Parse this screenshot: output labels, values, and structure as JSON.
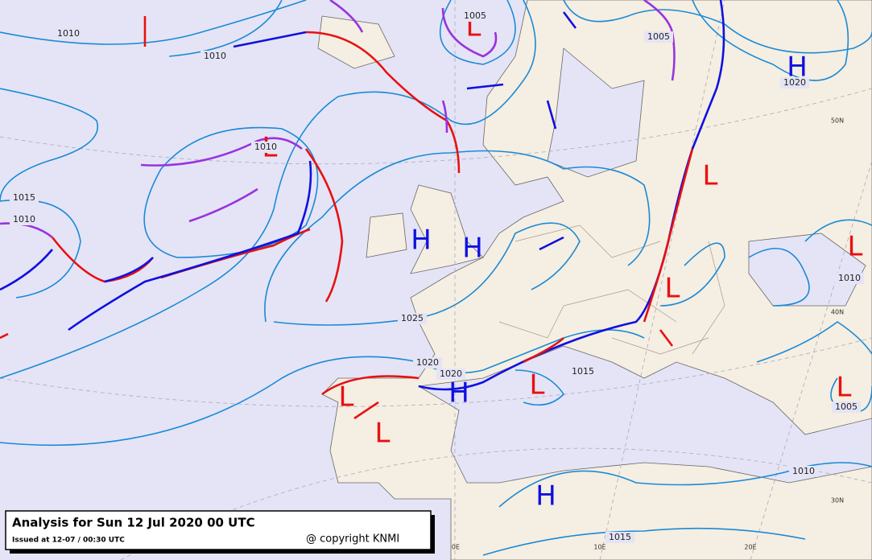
{
  "title_box": {
    "title": "Analysis for Sun 12 Jul 2020 00 UTC",
    "issued": "Issued at 12-07 / 00:30 UTC",
    "copyright": "@ copyright KNMI"
  },
  "pressure_centers": [
    "H",
    "L",
    "L",
    "L",
    "H",
    "H",
    "L",
    "L",
    "L",
    "H",
    "L",
    "L",
    "L",
    "H"
  ],
  "isobar_labels": [
    "1010",
    "1010",
    "1005",
    "1005",
    "1020",
    "1010",
    "1015",
    "1010",
    "1010",
    "1025",
    "1020",
    "1020",
    "1015",
    "1005",
    "1010",
    "1015"
  ],
  "grid_labels": [
    "50N",
    "40N",
    "30N",
    "0E",
    "10E",
    "20E"
  ]
}
